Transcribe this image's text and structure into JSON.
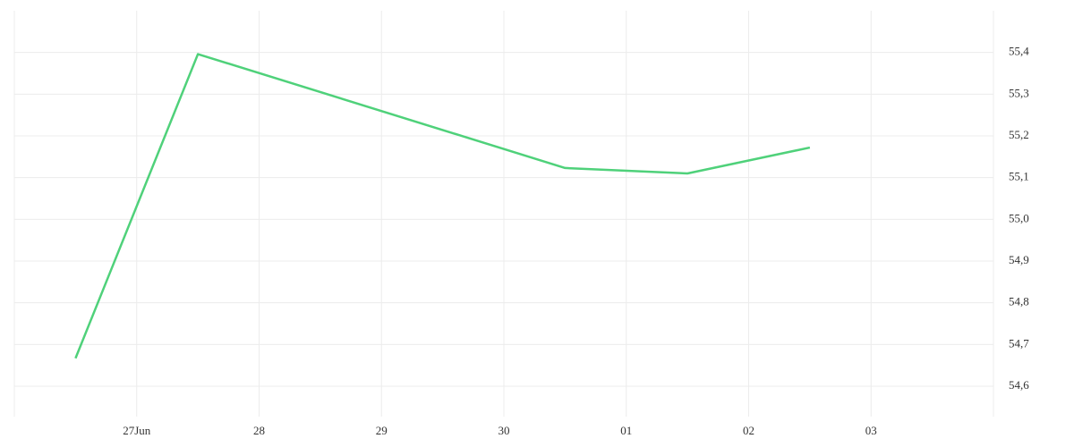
{
  "chart_data": {
    "type": "line",
    "x": [
      -0.5,
      0.5,
      3.5,
      4.5,
      5.5
    ],
    "series": [
      {
        "color": "#4fd17a",
        "values": [
          54.667,
          55.396,
          55.123,
          55.11,
          55.172
        ]
      }
    ],
    "xlim": [
      -1,
      7
    ],
    "xticks": [
      {
        "value": 0,
        "label": "27Jun"
      },
      {
        "value": 1,
        "label": "28"
      },
      {
        "value": 2,
        "label": "29"
      },
      {
        "value": 3,
        "label": "30"
      },
      {
        "value": 4,
        "label": "01"
      },
      {
        "value": 5,
        "label": "02"
      },
      {
        "value": 6,
        "label": "03"
      }
    ],
    "ylim": [
      54.54,
      55.5
    ],
    "yticks": [
      {
        "value": 54.6,
        "label": "54,6"
      },
      {
        "value": 54.7,
        "label": "54,7"
      },
      {
        "value": 54.8,
        "label": "54,8"
      },
      {
        "value": 54.9,
        "label": "54,9"
      },
      {
        "value": 55.0,
        "label": "55,0"
      },
      {
        "value": 55.1,
        "label": "55,1"
      },
      {
        "value": 55.2,
        "label": "55,2"
      },
      {
        "value": 55.3,
        "label": "55,3"
      },
      {
        "value": 55.4,
        "label": "55,4"
      }
    ],
    "grid": true
  }
}
